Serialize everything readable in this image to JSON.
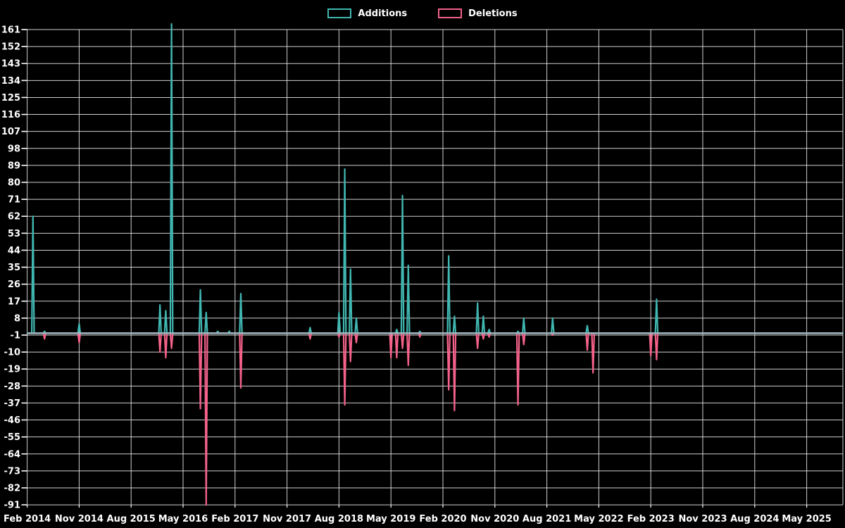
{
  "legend": {
    "items": [
      {
        "label": "Additions",
        "color": "#41b7b1"
      },
      {
        "label": "Deletions",
        "color": "#f4628a"
      }
    ]
  },
  "chart_data": {
    "type": "line",
    "title": "",
    "background_color": "#000000",
    "grid": true,
    "grid_color": "#e6e6e6",
    "text_color": "#ffffff",
    "baseline_overlap_color": "#9fb4bc",
    "legend_position": "top-center",
    "y_axis": {
      "min": -91,
      "max": 161,
      "step": 9,
      "tick_labels": [
        161,
        152,
        143,
        134,
        125,
        116,
        107,
        98,
        89,
        80,
        71,
        62,
        53,
        44,
        35,
        26,
        17,
        8,
        -1,
        -10,
        -19,
        -28,
        -37,
        -46,
        -55,
        -64,
        -73,
        -82,
        -91
      ]
    },
    "x_axis": {
      "start_month": "2014-02",
      "months_per_tick": 9,
      "tick_labels": [
        "Feb 2014",
        "Nov 2014",
        "Aug 2015",
        "May 2016",
        "Feb 2017",
        "Nov 2017",
        "Aug 2018",
        "May 2019",
        "Feb 2020",
        "Nov 2020",
        "Aug 2021",
        "May 2022",
        "Feb 2023",
        "Nov 2023",
        "Aug 2024",
        "May 2025"
      ]
    },
    "baseline_value": 0,
    "series": [
      {
        "name": "Additions",
        "color": "#41b7b1",
        "events": [
          {
            "date": "2014-03",
            "value": 62
          },
          {
            "date": "2014-05",
            "value": 1
          },
          {
            "date": "2014-11",
            "value": 5
          },
          {
            "date": "2016-01",
            "value": 15
          },
          {
            "date": "2016-02",
            "value": 12
          },
          {
            "date": "2016-03",
            "value": 164
          },
          {
            "date": "2016-08",
            "value": 23
          },
          {
            "date": "2016-09",
            "value": 11
          },
          {
            "date": "2016-11",
            "value": 1
          },
          {
            "date": "2017-01",
            "value": 1
          },
          {
            "date": "2017-03",
            "value": 21
          },
          {
            "date": "2018-03",
            "value": 3
          },
          {
            "date": "2018-08",
            "value": 11
          },
          {
            "date": "2018-09",
            "value": 87
          },
          {
            "date": "2018-10",
            "value": 34
          },
          {
            "date": "2018-11",
            "value": 8
          },
          {
            "date": "2019-06",
            "value": 2
          },
          {
            "date": "2019-07",
            "value": 73
          },
          {
            "date": "2019-08",
            "value": 36
          },
          {
            "date": "2019-10",
            "value": 1
          },
          {
            "date": "2020-03",
            "value": 41
          },
          {
            "date": "2020-04",
            "value": 9
          },
          {
            "date": "2020-08",
            "value": 16
          },
          {
            "date": "2020-09",
            "value": 9
          },
          {
            "date": "2020-10",
            "value": 2
          },
          {
            "date": "2021-03",
            "value": 1
          },
          {
            "date": "2021-04",
            "value": 8
          },
          {
            "date": "2021-09",
            "value": 8
          },
          {
            "date": "2022-03",
            "value": 4
          },
          {
            "date": "2023-03",
            "value": 18
          }
        ]
      },
      {
        "name": "Deletions",
        "color": "#f4628a",
        "events": [
          {
            "date": "2014-05",
            "value": -3
          },
          {
            "date": "2014-11",
            "value": -5
          },
          {
            "date": "2016-01",
            "value": -10
          },
          {
            "date": "2016-02",
            "value": -13
          },
          {
            "date": "2016-03",
            "value": -8
          },
          {
            "date": "2016-08",
            "value": -40
          },
          {
            "date": "2016-09",
            "value": -91
          },
          {
            "date": "2017-03",
            "value": -29
          },
          {
            "date": "2018-03",
            "value": -3
          },
          {
            "date": "2018-08",
            "value": -2
          },
          {
            "date": "2018-09",
            "value": -38
          },
          {
            "date": "2018-10",
            "value": -15
          },
          {
            "date": "2018-11",
            "value": -5
          },
          {
            "date": "2019-05",
            "value": -13
          },
          {
            "date": "2019-06",
            "value": -13
          },
          {
            "date": "2019-07",
            "value": -8
          },
          {
            "date": "2019-08",
            "value": -17
          },
          {
            "date": "2019-10",
            "value": -2
          },
          {
            "date": "2020-03",
            "value": -30
          },
          {
            "date": "2020-04",
            "value": -41
          },
          {
            "date": "2020-08",
            "value": -8
          },
          {
            "date": "2020-09",
            "value": -3
          },
          {
            "date": "2020-10",
            "value": -2
          },
          {
            "date": "2021-03",
            "value": -38
          },
          {
            "date": "2021-04",
            "value": -6
          },
          {
            "date": "2021-09",
            "value": -1
          },
          {
            "date": "2022-03",
            "value": -9
          },
          {
            "date": "2022-04",
            "value": -21
          },
          {
            "date": "2023-02",
            "value": -12
          },
          {
            "date": "2023-03",
            "value": -14
          }
        ]
      }
    ]
  }
}
